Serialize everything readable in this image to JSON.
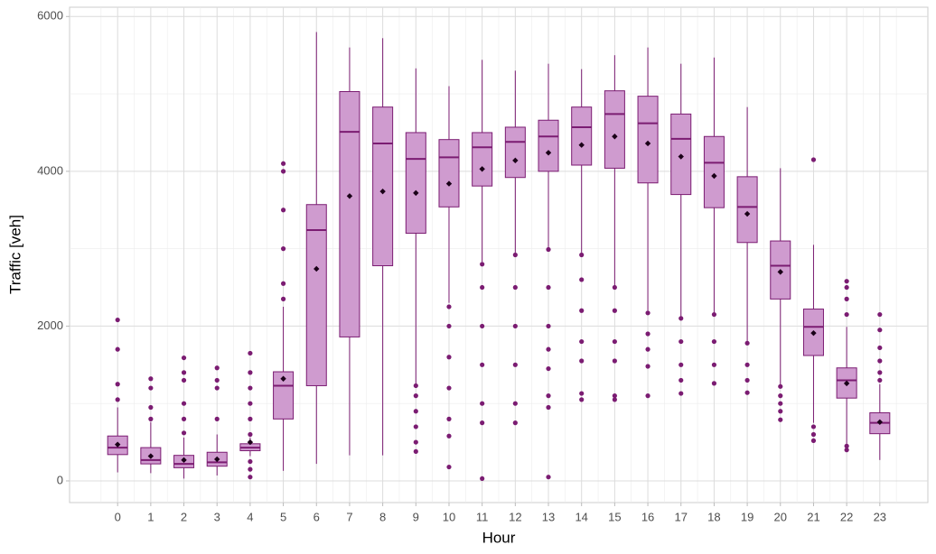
{
  "chart_data": {
    "type": "box",
    "x_label": "Hour",
    "y_label": "Traffic [veh]",
    "categories": [
      "0",
      "1",
      "2",
      "3",
      "4",
      "5",
      "6",
      "7",
      "8",
      "9",
      "10",
      "11",
      "12",
      "13",
      "14",
      "15",
      "16",
      "17",
      "18",
      "19",
      "20",
      "21",
      "22",
      "23"
    ],
    "whisker_low": [
      110,
      100,
      30,
      70,
      320,
      130,
      220,
      330,
      330,
      1250,
      2300,
      2830,
      2950,
      3010,
      2950,
      2520,
      2200,
      2120,
      2150,
      1800,
      1230,
      750,
      450,
      270
    ],
    "q1": [
      340,
      220,
      170,
      190,
      390,
      800,
      1230,
      1860,
      2780,
      3200,
      3540,
      3810,
      3920,
      4000,
      4080,
      4040,
      3850,
      3700,
      3530,
      3080,
      2350,
      1620,
      1070,
      610
    ],
    "median": [
      430,
      270,
      220,
      240,
      430,
      1230,
      3240,
      4510,
      4360,
      4160,
      4180,
      4310,
      4380,
      4450,
      4570,
      4740,
      4620,
      4420,
      4110,
      3540,
      2780,
      1990,
      1300,
      750
    ],
    "q3": [
      580,
      430,
      330,
      370,
      480,
      1410,
      3570,
      5030,
      4830,
      4500,
      4410,
      4500,
      4570,
      4660,
      4830,
      5040,
      4970,
      4740,
      4450,
      3930,
      3100,
      2220,
      1460,
      880
    ],
    "whisker_high": [
      950,
      760,
      560,
      600,
      560,
      2250,
      5800,
      5600,
      5720,
      5330,
      5100,
      5440,
      5300,
      5390,
      5320,
      5500,
      5600,
      5390,
      5470,
      4830,
      4040,
      3050,
      1990,
      1250
    ],
    "mean": [
      470,
      320,
      270,
      280,
      500,
      1320,
      2740,
      3680,
      3740,
      3720,
      3840,
      4030,
      4140,
      4240,
      4340,
      4450,
      4360,
      4190,
      3940,
      3450,
      2700,
      1910,
      1260,
      760
    ],
    "outliers": [
      [
        1050,
        1250,
        1700,
        2080
      ],
      [
        800,
        950,
        1200,
        1320
      ],
      [
        620,
        800,
        1000,
        1300,
        1400,
        1590
      ],
      [
        800,
        1200,
        1300,
        1460
      ],
      [
        50,
        150,
        250,
        600,
        800,
        1000,
        1200,
        1400,
        1650
      ],
      [
        2350,
        2550,
        3000,
        3500,
        4000,
        4100
      ],
      [],
      [],
      [],
      [
        380,
        500,
        700,
        900,
        1100,
        1230
      ],
      [
        180,
        580,
        800,
        1200,
        1600,
        2000,
        2250
      ],
      [
        30,
        750,
        1000,
        1500,
        2000,
        2500,
        2800
      ],
      [
        750,
        1000,
        1500,
        2000,
        2500,
        2920
      ],
      [
        50,
        950,
        1100,
        1450,
        1700,
        2000,
        2500,
        2990
      ],
      [
        1050,
        1130,
        1550,
        1800,
        2200,
        2600,
        2920
      ],
      [
        1050,
        1100,
        1550,
        1800,
        2200,
        2500
      ],
      [
        1100,
        1480,
        1700,
        1900,
        2170
      ],
      [
        1130,
        1300,
        1500,
        1800,
        2100
      ],
      [
        1260,
        1500,
        1800,
        2150
      ],
      [
        1140,
        1300,
        1500,
        1780
      ],
      [
        790,
        900,
        1000,
        1100,
        1220
      ],
      [
        520,
        600,
        700,
        4150
      ],
      [
        400,
        450,
        2150,
        2350,
        2500,
        2580
      ],
      [
        1300,
        1400,
        1550,
        1720,
        1950,
        2150
      ]
    ],
    "ylim": [
      -280,
      6120
    ],
    "yticks": [
      0,
      2000,
      4000,
      6000
    ],
    "y_minor_ticks": [
      1000,
      3000,
      5000
    ],
    "grid": true,
    "fill_color": "#cf9bcf",
    "line_color": "#7b1c72",
    "mean_color": "#1a0018"
  }
}
